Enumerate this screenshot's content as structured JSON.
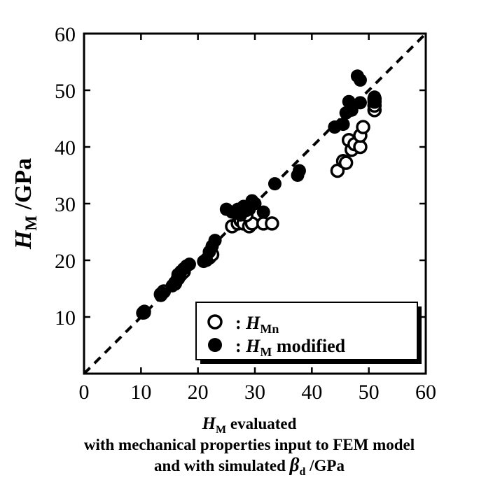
{
  "chart_data": {
    "type": "scatter",
    "xlabel": {
      "line1_symbol": "H",
      "line1_sub": "M",
      "line1_rest": " evaluated",
      "line2": "with mechanical properties input to FEM model",
      "line3_pre": "and with simulated ",
      "line3_symbol": "β",
      "line3_sub": "d",
      "line3_post": " /GPa"
    },
    "ylabel": {
      "symbol": "H",
      "sub": "M",
      "rest": " /GPa"
    },
    "xlim": [
      0,
      60
    ],
    "ylim": [
      0,
      60
    ],
    "xticks": [
      "0",
      "10",
      "20",
      "30",
      "40",
      "50",
      "60"
    ],
    "yticks": [
      "10",
      "20",
      "30",
      "40",
      "50",
      "60"
    ],
    "grid": false,
    "reference_line": "y = x (dashed)",
    "legend_position": "bottom-right",
    "series": [
      {
        "name": {
          "prefix": ": ",
          "symbol": "H",
          "sub": "Mn",
          "rest": ""
        },
        "marker": "open-circle",
        "points": [
          [
            10.5,
            10.8
          ],
          [
            13.5,
            14.0
          ],
          [
            14.0,
            14.5
          ],
          [
            16.0,
            16.0
          ],
          [
            16.5,
            16.8
          ],
          [
            17.0,
            17.5
          ],
          [
            17.5,
            18.0
          ],
          [
            22.0,
            20.5
          ],
          [
            22.5,
            21.0
          ],
          [
            26.0,
            26.0
          ],
          [
            27.0,
            26.5
          ],
          [
            27.5,
            27.0
          ],
          [
            28.0,
            26.5
          ],
          [
            29.0,
            26.0
          ],
          [
            29.5,
            26.5
          ],
          [
            31.5,
            26.5
          ],
          [
            33.0,
            26.5
          ],
          [
            28.5,
            28.0
          ],
          [
            44.5,
            35.8
          ],
          [
            45.5,
            37.5
          ],
          [
            46.0,
            37.2
          ],
          [
            46.5,
            41.2
          ],
          [
            47.0,
            39.5
          ],
          [
            47.5,
            40.5
          ],
          [
            48.5,
            40.0
          ],
          [
            48.5,
            42.0
          ],
          [
            49.0,
            43.5
          ],
          [
            51.0,
            46.5
          ],
          [
            51.0,
            47.3
          ],
          [
            51.0,
            48.0
          ],
          [
            51.0,
            48.5
          ]
        ]
      },
      {
        "name": {
          "prefix": ": ",
          "symbol": "H",
          "sub": "M",
          "rest": " modified"
        },
        "marker": "filled-circle",
        "points": [
          [
            10.3,
            10.7
          ],
          [
            10.6,
            11.0
          ],
          [
            13.5,
            13.8
          ],
          [
            13.8,
            14.2
          ],
          [
            15.5,
            15.5
          ],
          [
            16.0,
            15.8
          ],
          [
            16.5,
            17.5
          ],
          [
            17.0,
            18.0
          ],
          [
            17.5,
            18.5
          ],
          [
            18.0,
            19.0
          ],
          [
            18.5,
            19.3
          ],
          [
            21.0,
            19.8
          ],
          [
            21.5,
            20.0
          ],
          [
            22.0,
            21.5
          ],
          [
            22.5,
            22.5
          ],
          [
            23.0,
            23.5
          ],
          [
            25.0,
            29.0
          ],
          [
            26.0,
            28.5
          ],
          [
            27.0,
            29.0
          ],
          [
            27.5,
            28.0
          ],
          [
            28.0,
            29.5
          ],
          [
            28.5,
            28.8
          ],
          [
            29.0,
            29.0
          ],
          [
            29.5,
            30.5
          ],
          [
            30.0,
            30.0
          ],
          [
            31.5,
            28.5
          ],
          [
            33.5,
            33.5
          ],
          [
            37.5,
            35.0
          ],
          [
            37.8,
            35.8
          ],
          [
            44.0,
            43.5
          ],
          [
            45.5,
            44.0
          ],
          [
            46.0,
            46.0
          ],
          [
            46.5,
            48.0
          ],
          [
            47.0,
            46.5
          ],
          [
            48.0,
            52.5
          ],
          [
            48.5,
            51.8
          ],
          [
            48.5,
            47.8
          ],
          [
            51.0,
            48.8
          ],
          [
            51.0,
            48.0
          ]
        ]
      }
    ]
  }
}
